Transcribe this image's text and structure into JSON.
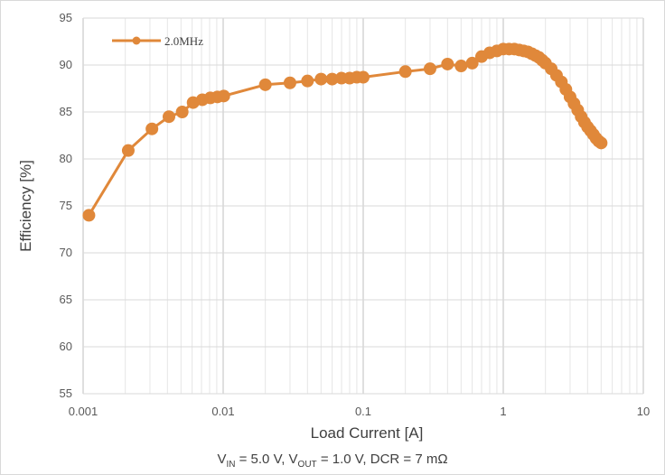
{
  "chart_data": {
    "type": "line",
    "title": "",
    "xlabel": "Load Current [A]",
    "ylabel": "Efficiency [%]",
    "x_scale": "log",
    "xlim": [
      0.001,
      10
    ],
    "ylim": [
      55,
      95
    ],
    "x_ticks": [
      "0.001",
      "0.01",
      "0.1",
      "1",
      "10"
    ],
    "y_ticks": [
      "55",
      "60",
      "65",
      "70",
      "75",
      "80",
      "85",
      "90",
      "95"
    ],
    "grid": true,
    "legend_position": "top-left",
    "series": [
      {
        "name": "2.0MHz",
        "color": "#E0883A",
        "x": [
          0.0011,
          0.0021,
          0.0031,
          0.0041,
          0.0051,
          0.0061,
          0.0071,
          0.0081,
          0.0091,
          0.0101,
          0.02,
          0.03,
          0.04,
          0.05,
          0.06,
          0.07,
          0.08,
          0.09,
          0.1,
          0.2,
          0.3,
          0.4,
          0.5,
          0.6,
          0.7,
          0.8,
          0.9,
          1.0,
          1.1,
          1.2,
          1.3,
          1.4,
          1.5,
          1.6,
          1.7,
          1.8,
          1.9,
          2.0,
          2.2,
          2.4,
          2.6,
          2.8,
          3.0,
          3.2,
          3.4,
          3.6,
          3.8,
          4.0,
          4.2,
          4.4,
          4.6,
          4.8,
          5.0
        ],
        "y": [
          74.0,
          80.9,
          83.2,
          84.5,
          85.0,
          86.0,
          86.3,
          86.5,
          86.6,
          86.7,
          87.9,
          88.1,
          88.3,
          88.5,
          88.5,
          88.6,
          88.6,
          88.7,
          88.7,
          89.3,
          89.6,
          90.1,
          89.9,
          90.2,
          90.9,
          91.3,
          91.5,
          91.7,
          91.7,
          91.7,
          91.6,
          91.5,
          91.4,
          91.2,
          91.0,
          90.8,
          90.5,
          90.2,
          89.6,
          88.9,
          88.2,
          87.4,
          86.6,
          85.9,
          85.2,
          84.5,
          83.9,
          83.4,
          83.0,
          82.6,
          82.2,
          81.9,
          81.7
        ]
      }
    ]
  },
  "caption": {
    "v_in_label": "V",
    "v_in_sub": "IN",
    "v_in_value": " = 5.0 V, ",
    "v_out_label": "V",
    "v_out_sub": "OUT",
    "v_out_value": " = 1.0 V, DCR = 7 mΩ"
  }
}
